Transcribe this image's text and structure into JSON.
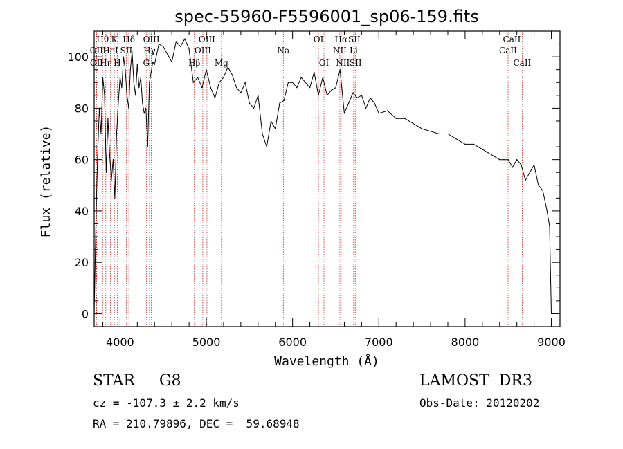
{
  "chart_data": {
    "type": "line",
    "title": "spec-55960-F5596001_sp06-159.fits",
    "xlabel": "Wavelength (Å)",
    "ylabel": "Flux (relative)",
    "xlim": [
      3700,
      9100
    ],
    "ylim": [
      -5,
      110
    ],
    "x_ticks": [
      4000,
      5000,
      6000,
      7000,
      8000,
      9000
    ],
    "y_ticks": [
      0,
      20,
      40,
      60,
      80,
      100
    ],
    "grid": false,
    "line_color": "#000000",
    "marker_color": "#cc2020",
    "series": [
      {
        "name": "flux",
        "x": [
          3700,
          3720,
          3740,
          3760,
          3780,
          3800,
          3820,
          3840,
          3860,
          3880,
          3900,
          3920,
          3940,
          3960,
          3980,
          4000,
          4020,
          4040,
          4060,
          4080,
          4100,
          4120,
          4140,
          4160,
          4180,
          4200,
          4220,
          4240,
          4260,
          4280,
          4300,
          4320,
          4340,
          4360,
          4380,
          4400,
          4450,
          4500,
          4550,
          4600,
          4650,
          4700,
          4750,
          4800,
          4850,
          4900,
          4950,
          5000,
          5050,
          5100,
          5150,
          5200,
          5250,
          5300,
          5350,
          5400,
          5450,
          5500,
          5550,
          5600,
          5650,
          5700,
          5750,
          5800,
          5850,
          5900,
          5950,
          6000,
          6050,
          6100,
          6150,
          6200,
          6250,
          6300,
          6350,
          6400,
          6450,
          6500,
          6550,
          6600,
          6650,
          6700,
          6750,
          6800,
          6850,
          6900,
          6950,
          7000,
          7100,
          7200,
          7300,
          7400,
          7500,
          7600,
          7700,
          7800,
          7900,
          8000,
          8100,
          8200,
          8300,
          8400,
          8450,
          8500,
          8550,
          8600,
          8650,
          8700,
          8750,
          8800,
          8850,
          8900,
          8950,
          8980,
          9000
        ],
        "y": [
          0,
          35,
          62,
          80,
          70,
          92,
          85,
          55,
          76,
          62,
          52,
          60,
          45,
          70,
          82,
          92,
          88,
          100,
          95,
          85,
          80,
          95,
          102,
          90,
          85,
          97,
          88,
          92,
          82,
          78,
          80,
          65,
          90,
          94,
          98,
          97,
          105,
          104,
          101,
          98,
          106,
          104,
          107,
          103,
          90,
          92,
          88,
          95,
          88,
          84,
          90,
          92,
          96,
          93,
          88,
          86,
          90,
          82,
          80,
          85,
          70,
          65,
          75,
          72,
          82,
          83,
          90,
          90,
          88,
          92,
          90,
          88,
          94,
          85,
          92,
          85,
          87,
          88,
          95,
          78,
          82,
          86,
          84,
          85,
          80,
          84,
          82,
          78,
          79,
          76,
          76,
          74,
          72,
          71,
          70,
          70,
          68,
          66,
          66,
          64,
          62,
          60,
          60,
          60,
          57,
          60,
          58,
          52,
          55,
          58,
          50,
          48,
          40,
          34,
          0
        ]
      }
    ],
    "lines": [
      {
        "label": "Hθ",
        "x": 3798,
        "row": 1
      },
      {
        "label": "OII",
        "x": 3727,
        "row": 2
      },
      {
        "label": "OII",
        "x": 3729,
        "row": 3
      },
      {
        "label": "Hη",
        "x": 3835,
        "row": 3
      },
      {
        "label": "HeI",
        "x": 3889,
        "row": 2
      },
      {
        "label": "K",
        "x": 3934,
        "row": 1
      },
      {
        "label": "H",
        "x": 3969,
        "row": 3
      },
      {
        "label": "SII",
        "x": 4072,
        "row": 2
      },
      {
        "label": "Hδ",
        "x": 4102,
        "row": 1
      },
      {
        "label": "OIII",
        "x": 4363,
        "row": 1
      },
      {
        "label": "Hγ",
        "x": 4341,
        "row": 2
      },
      {
        "label": "G",
        "x": 4304,
        "row": 3
      },
      {
        "label": "Hβ",
        "x": 4861,
        "row": 3
      },
      {
        "label": "OIII",
        "x": 4959,
        "row": 2
      },
      {
        "label": "OIII",
        "x": 5007,
        "row": 1
      },
      {
        "label": "Mg",
        "x": 5175,
        "row": 3
      },
      {
        "label": "Na",
        "x": 5893,
        "row": 2
      },
      {
        "label": "OI",
        "x": 6300,
        "row": 1
      },
      {
        "label": "OI",
        "x": 6364,
        "row": 3
      },
      {
        "label": "NII",
        "x": 6548,
        "row": 2
      },
      {
        "label": "Hα",
        "x": 6563,
        "row": 1
      },
      {
        "label": "NII",
        "x": 6583,
        "row": 3
      },
      {
        "label": "SII",
        "x": 6716,
        "row": 1
      },
      {
        "label": "Li",
        "x": 6708,
        "row": 2
      },
      {
        "label": "SII",
        "x": 6731,
        "row": 3
      },
      {
        "label": "CaII",
        "x": 8498,
        "row": 2
      },
      {
        "label": "CaII",
        "x": 8542,
        "row": 1
      },
      {
        "label": "CaII",
        "x": 8662,
        "row": 3
      }
    ]
  },
  "info": {
    "classification": "STAR     G8",
    "survey": "LAMOST  DR3",
    "redshift": "cz = -107.3 ± 2.2 km/s",
    "obs_date": "Obs-Date: 20120202",
    "coords": "RA = 210.79896, DEC =  59.68948"
  }
}
